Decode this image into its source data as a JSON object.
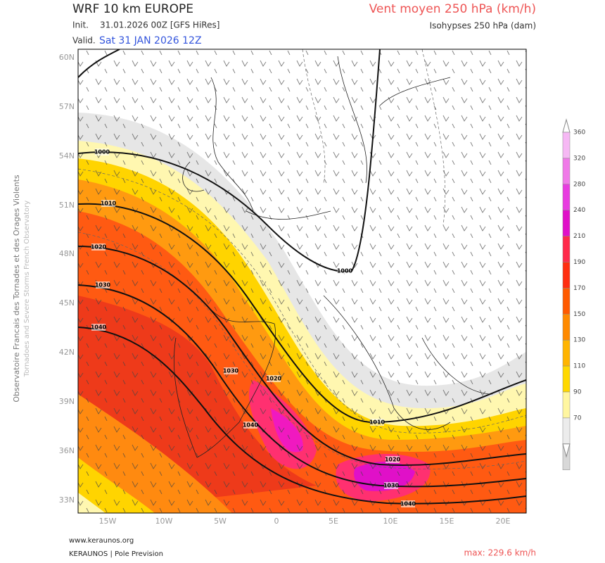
{
  "header": {
    "title": "WRF 10 km EUROPE",
    "init_label": "Init.",
    "init_value": "31.01.2026 00Z [GFS HiRes]",
    "valid_label": "Valid.",
    "valid_value": "Sat 31 JAN 2026 12Z",
    "field": "Vent moyen 250 hPa (km/h)",
    "subfield": "Isohypses 250 hPa (dam)"
  },
  "map": {
    "lat_labels": [
      "60N",
      "57N",
      "54N",
      "51N",
      "48N",
      "45N",
      "42N",
      "39N",
      "36N",
      "33N"
    ],
    "lon_labels": [
      "15W",
      "10W",
      "5W",
      "0",
      "5E",
      "10E",
      "15E",
      "20E"
    ],
    "contour_labels": [
      "1000",
      "1010",
      "1020",
      "1030",
      "1040",
      "1030",
      "1020",
      "1040",
      "1010",
      "1000",
      "1020",
      "1030",
      "1040"
    ]
  },
  "colorbar": {
    "levels": [
      "360",
      "320",
      "280",
      "240",
      "210",
      "190",
      "170",
      "150",
      "130",
      "110",
      "90",
      "70"
    ]
  },
  "side": {
    "line1": "Observatoire Francais des Tornades et des Orages Violents",
    "line2": "Tornadoes and Severe Storms French Observatory"
  },
  "footer": {
    "website": "www.keraunos.org",
    "credit": "KERAUNOS | Pole Prevision",
    "max": "max: 229.6 km/h"
  }
}
